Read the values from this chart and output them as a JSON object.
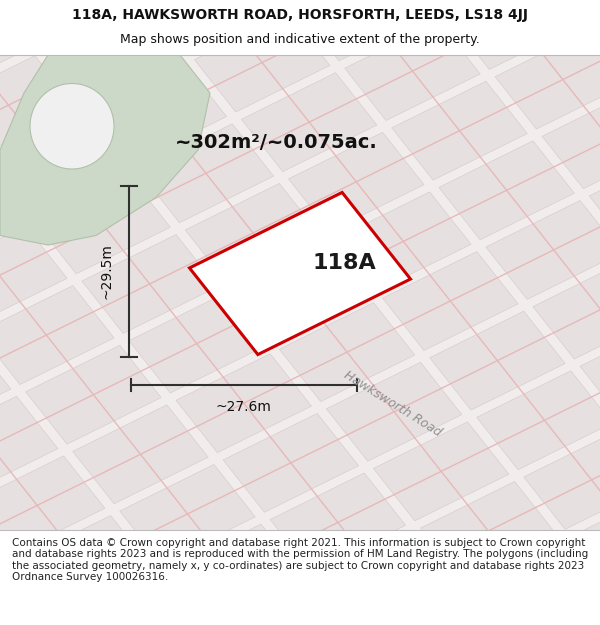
{
  "title_line1": "118A, HAWKSWORTH ROAD, HORSFORTH, LEEDS, LS18 4JJ",
  "title_line2": "Map shows position and indicative extent of the property.",
  "footer_text": "Contains OS data © Crown copyright and database right 2021. This information is subject to Crown copyright and database rights 2023 and is reproduced with the permission of HM Land Registry. The polygons (including the associated geometry, namely x, y co-ordinates) are subject to Crown copyright and database rights 2023 Ordnance Survey 100026316.",
  "area_label": "~302m²/~0.075ac.",
  "label_118A": "118A",
  "dim_height": "~29.5m",
  "dim_width": "~27.6m",
  "road_label": "Hawksworth Road",
  "map_bg": "#f2eded",
  "block_fill": "#e6e0e0",
  "block_edge": "#d4c8c8",
  "road_line_color": "#e8b8b8",
  "green_area_color": "#cdd9c8",
  "green_edge_color": "#b0c0a8",
  "white_circle_color": "#f0f0f0",
  "plot_fill": "#ffffff",
  "plot_edge": "#cc0000",
  "dim_line_color": "#303030",
  "road_label_color": "#909090",
  "title_fontsize": 10,
  "subtitle_fontsize": 9,
  "footer_fontsize": 7.5,
  "area_fontsize": 14,
  "label_118A_fontsize": 16,
  "dim_fontsize": 10
}
